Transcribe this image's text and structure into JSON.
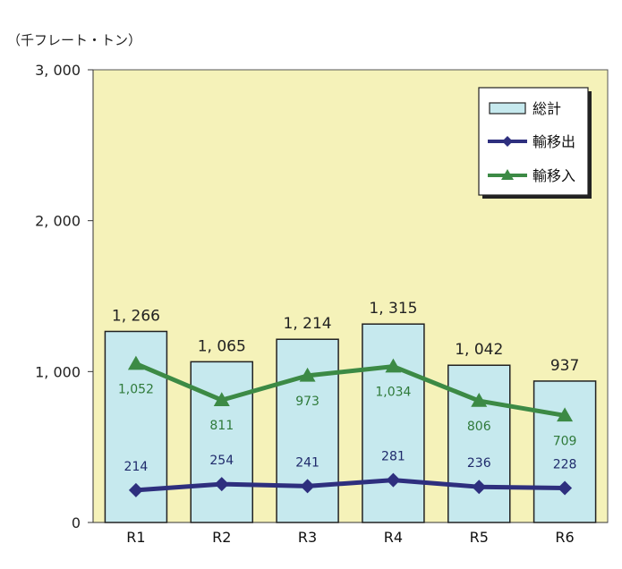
{
  "unit_label": "（千フレート・トン）",
  "colors": {
    "plot_bg": "#F5F2B9",
    "bar_fill": "#C6E9EE",
    "bar_stroke": "#222222",
    "out_line": "#2E2F7E",
    "in_line": "#3C8A45",
    "legend_bg": "#FFFFFF"
  },
  "chart_data": {
    "type": "bar",
    "categories": [
      "R1",
      "R2",
      "R3",
      "R4",
      "R5",
      "R6"
    ],
    "ylim": [
      0,
      3000
    ],
    "yticks": [
      0,
      1000,
      2000,
      3000
    ],
    "ytick_labels": [
      "0",
      "1, 000",
      "2, 000",
      "3, 000"
    ],
    "grid": false,
    "legend_position": "top-right",
    "series": [
      {
        "name": "総計",
        "kind": "bar",
        "values": [
          1266,
          1065,
          1214,
          1315,
          1042,
          937
        ],
        "labels": [
          "1, 266",
          "1, 065",
          "1, 214",
          "1, 315",
          "1, 042",
          "937"
        ]
      },
      {
        "name": "輸移出",
        "kind": "line",
        "marker": "diamond",
        "values": [
          214,
          254,
          241,
          281,
          236,
          228
        ],
        "labels": [
          "214",
          "254",
          "241",
          "281",
          "236",
          "228"
        ]
      },
      {
        "name": "輸移入",
        "kind": "line",
        "marker": "triangle",
        "values": [
          1052,
          811,
          973,
          1034,
          806,
          709
        ],
        "labels": [
          "1,052",
          "811",
          "973",
          "1,034",
          "806",
          "709"
        ]
      }
    ]
  }
}
